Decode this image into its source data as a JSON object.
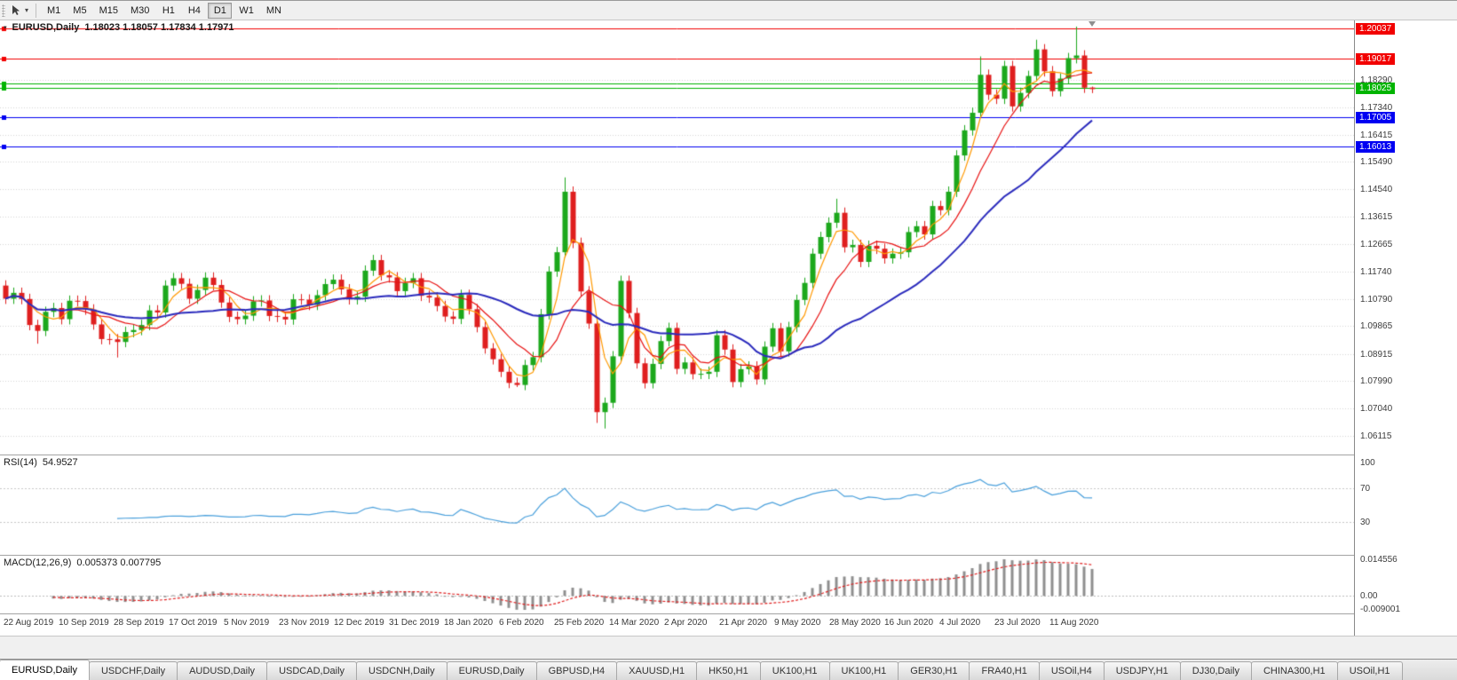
{
  "toolbar": {
    "timeframes": [
      "M1",
      "M5",
      "M15",
      "M30",
      "H1",
      "H4",
      "D1",
      "W1",
      "MN"
    ],
    "active_timeframe": "D1"
  },
  "chart_header": {
    "symbol_period": "EURUSD,Daily",
    "ohlc": "1.18023 1.18057 1.17834 1.17971"
  },
  "chart_data": {
    "type": "candlestick",
    "symbol": "EURUSD",
    "period": "Daily",
    "ylim": [
      1.0547,
      1.2032
    ],
    "up_color": "#1ca81c",
    "down_color": "#df1f1f",
    "grid_color": "#d6d6d6",
    "price_axis_labels": [
      "1.18290",
      "1.17340",
      "1.16415",
      "1.15490",
      "1.14540",
      "1.13615",
      "1.12665",
      "1.11740",
      "1.10790",
      "1.09865",
      "1.08915",
      "1.07990",
      "1.07040",
      "1.06115"
    ],
    "date_axis_labels": [
      "22 Aug 2019",
      "10 Sep 2019",
      "28 Sep 2019",
      "17 Oct 2019",
      "5 Nov 2019",
      "23 Nov 2019",
      "12 Dec 2019",
      "31 Dec 2019",
      "18 Jan 2020",
      "6 Feb 2020",
      "25 Feb 2020",
      "14 Mar 2020",
      "2 Apr 2020",
      "21 Apr 2020",
      "9 May 2020",
      "28 May 2020",
      "16 Jun 2020",
      "4 Jul 2020",
      "23 Jul 2020",
      "11 Aug 2020"
    ],
    "hlines": [
      {
        "price": 1.20037,
        "color": "#f20000",
        "label": "1.20037"
      },
      {
        "price": 1.19017,
        "color": "#f20000",
        "label": "1.19017"
      },
      {
        "price": 1.1815,
        "color": "#00b400",
        "label": null
      },
      {
        "price": 1.18025,
        "color": "#00b400",
        "label": "1.18025"
      },
      {
        "price": 1.17005,
        "color": "#0000f2",
        "label": "1.17005"
      },
      {
        "price": 1.16013,
        "color": "#0000f2",
        "label": "1.16013"
      }
    ],
    "moving_averages": [
      {
        "period": 4,
        "color": "#ff9900"
      },
      {
        "period": 9,
        "color": "#e81212"
      },
      {
        "period": 24,
        "color": "#2b2bbd"
      }
    ],
    "candles": [
      [
        1.1125,
        1.1143,
        1.1062,
        1.108
      ],
      [
        1.108,
        1.1118,
        1.1062,
        1.11
      ],
      [
        1.11,
        1.1118,
        1.1061,
        1.1079
      ],
      [
        1.1079,
        1.1097,
        1.0972,
        1.099
      ],
      [
        1.099,
        1.1008,
        1.0926,
        1.097
      ],
      [
        1.097,
        1.1053,
        1.0952,
        1.1035
      ],
      [
        1.1035,
        1.1066,
        1.1017,
        1.1048
      ],
      [
        1.1048,
        1.1066,
        1.0992,
        1.101
      ],
      [
        1.101,
        1.1091,
        1.0992,
        1.1073
      ],
      [
        1.1073,
        1.1091,
        1.1054,
        1.1072
      ],
      [
        1.1072,
        1.109,
        1.1025,
        1.1043
      ],
      [
        1.1043,
        1.1061,
        1.0974,
        1.0992
      ],
      [
        1.0992,
        1.101,
        1.0924,
        1.0942
      ],
      [
        1.0942,
        1.096,
        1.0923,
        1.0941
      ],
      [
        1.0941,
        1.0959,
        1.0879,
        1.0932
      ],
      [
        1.0932,
        1.0984,
        1.0914,
        1.0966
      ],
      [
        1.0966,
        1.0991,
        1.0948,
        1.0973
      ],
      [
        1.0973,
        1.1008,
        1.0955,
        1.099
      ],
      [
        1.099,
        1.1058,
        1.0972,
        1.104
      ],
      [
        1.104,
        1.1058,
        1.1015,
        1.1033
      ],
      [
        1.1033,
        1.1143,
        1.1015,
        1.1125
      ],
      [
        1.1125,
        1.1168,
        1.1107,
        1.115
      ],
      [
        1.115,
        1.1168,
        1.1113,
        1.1131
      ],
      [
        1.1131,
        1.1149,
        1.1062,
        1.108
      ],
      [
        1.108,
        1.1128,
        1.1062,
        1.111
      ],
      [
        1.111,
        1.117,
        1.1092,
        1.1152
      ],
      [
        1.1152,
        1.117,
        1.1109,
        1.1127
      ],
      [
        1.1127,
        1.1145,
        1.1049,
        1.1067
      ],
      [
        1.1067,
        1.1085,
        1.1,
        1.1018
      ],
      [
        1.1018,
        1.1036,
        1.0992,
        1.101
      ],
      [
        1.101,
        1.104,
        1.0992,
        1.1022
      ],
      [
        1.1022,
        1.1089,
        1.1004,
        1.1071
      ],
      [
        1.1071,
        1.1092,
        1.1053,
        1.1074
      ],
      [
        1.1074,
        1.1092,
        1.1003,
        1.1021
      ],
      [
        1.1021,
        1.1039,
        1.1,
        1.1018
      ],
      [
        1.1018,
        1.1036,
        1.0991,
        1.1009
      ],
      [
        1.1009,
        1.1096,
        1.0991,
        1.1078
      ],
      [
        1.1078,
        1.1096,
        1.1059,
        1.1077
      ],
      [
        1.1077,
        1.1095,
        1.1041,
        1.1059
      ],
      [
        1.1059,
        1.111,
        1.1041,
        1.1092
      ],
      [
        1.1092,
        1.1148,
        1.1074,
        1.113
      ],
      [
        1.113,
        1.1163,
        1.1112,
        1.1145
      ],
      [
        1.1145,
        1.1163,
        1.1094,
        1.1112
      ],
      [
        1.1112,
        1.113,
        1.106,
        1.1078
      ],
      [
        1.1078,
        1.1105,
        1.106,
        1.1087
      ],
      [
        1.1087,
        1.1194,
        1.1069,
        1.1176
      ],
      [
        1.1176,
        1.123,
        1.1158,
        1.1212
      ],
      [
        1.1212,
        1.123,
        1.1142,
        1.116
      ],
      [
        1.116,
        1.1178,
        1.1135,
        1.1153
      ],
      [
        1.1153,
        1.1171,
        1.1088,
        1.1106
      ],
      [
        1.1106,
        1.1152,
        1.1088,
        1.1134
      ],
      [
        1.1134,
        1.1168,
        1.1116,
        1.115
      ],
      [
        1.115,
        1.1168,
        1.1072,
        1.109
      ],
      [
        1.109,
        1.1108,
        1.1066,
        1.1084
      ],
      [
        1.1084,
        1.1102,
        1.1037,
        1.1055
      ],
      [
        1.1055,
        1.1073,
        1.1001,
        1.1019
      ],
      [
        1.1019,
        1.1037,
        1.0993,
        1.1011
      ],
      [
        1.1011,
        1.1111,
        1.0993,
        1.1093
      ],
      [
        1.1093,
        1.1111,
        1.1026,
        1.1044
      ],
      [
        1.1044,
        1.1062,
        1.0965,
        1.0983
      ],
      [
        1.0983,
        1.1001,
        1.0892,
        1.091
      ],
      [
        1.091,
        1.0928,
        1.0855,
        1.0873
      ],
      [
        1.0873,
        1.0891,
        1.0812,
        1.083
      ],
      [
        1.083,
        1.0848,
        1.0774,
        1.0792
      ],
      [
        1.0792,
        1.081,
        1.0778,
        1.0785
      ],
      [
        1.0785,
        1.0871,
        1.0767,
        1.0853
      ],
      [
        1.0853,
        1.0898,
        1.0835,
        1.088
      ],
      [
        1.088,
        1.1045,
        1.0862,
        1.1027
      ],
      [
        1.1027,
        1.1191,
        1.1009,
        1.1173
      ],
      [
        1.1173,
        1.1257,
        1.1155,
        1.1239
      ],
      [
        1.1239,
        1.1495,
        1.1221,
        1.1446
      ],
      [
        1.1446,
        1.1464,
        1.1253,
        1.1271
      ],
      [
        1.1271,
        1.1289,
        1.1087,
        1.1105
      ],
      [
        1.1105,
        1.1123,
        1.0977,
        1.0995
      ],
      [
        1.0995,
        1.1013,
        1.0655,
        1.0692
      ],
      [
        1.0692,
        1.0742,
        1.0636,
        1.0724
      ],
      [
        1.0724,
        1.0901,
        1.0706,
        1.0883
      ],
      [
        1.0883,
        1.1159,
        1.0865,
        1.1141
      ],
      [
        1.1141,
        1.1159,
        1.1013,
        1.1031
      ],
      [
        1.1031,
        1.1049,
        1.0841,
        1.0859
      ],
      [
        1.0859,
        1.0877,
        1.0773,
        1.0791
      ],
      [
        1.0791,
        1.0875,
        1.0773,
        1.0857
      ],
      [
        1.0857,
        1.0953,
        1.0839,
        1.0935
      ],
      [
        1.0935,
        1.0998,
        1.0917,
        1.098
      ],
      [
        1.098,
        1.0998,
        1.0822,
        1.084
      ],
      [
        1.084,
        1.088,
        1.0822,
        1.0862
      ],
      [
        1.0862,
        1.088,
        1.0804,
        1.0822
      ],
      [
        1.0822,
        1.0841,
        1.0805,
        1.0823
      ],
      [
        1.0823,
        1.0848,
        1.0805,
        1.083
      ],
      [
        1.083,
        1.0973,
        1.0812,
        1.0955
      ],
      [
        1.0955,
        1.0973,
        1.0888,
        1.0906
      ],
      [
        1.0906,
        1.0924,
        1.0777,
        1.0795
      ],
      [
        1.0795,
        1.0857,
        1.0777,
        1.0839
      ],
      [
        1.0839,
        1.0866,
        1.0821,
        1.0848
      ],
      [
        1.0848,
        1.0866,
        1.0786,
        1.0804
      ],
      [
        1.0804,
        1.0934,
        1.0786,
        1.0916
      ],
      [
        1.0916,
        1.0997,
        1.0898,
        1.0979
      ],
      [
        1.0979,
        1.0997,
        1.0882,
        1.09
      ],
      [
        1.09,
        1.1001,
        1.0882,
        1.0983
      ],
      [
        1.0983,
        1.1094,
        1.0965,
        1.1076
      ],
      [
        1.1076,
        1.1152,
        1.1058,
        1.1134
      ],
      [
        1.1134,
        1.1252,
        1.1116,
        1.1234
      ],
      [
        1.1234,
        1.1309,
        1.1216,
        1.1291
      ],
      [
        1.1291,
        1.1358,
        1.1273,
        1.134
      ],
      [
        1.134,
        1.1422,
        1.1322,
        1.1374
      ],
      [
        1.1374,
        1.1392,
        1.1238,
        1.1256
      ],
      [
        1.1256,
        1.1282,
        1.1238,
        1.1264
      ],
      [
        1.1264,
        1.1282,
        1.1188,
        1.1206
      ],
      [
        1.1206,
        1.1279,
        1.1188,
        1.1261
      ],
      [
        1.1261,
        1.1279,
        1.1233,
        1.1251
      ],
      [
        1.1251,
        1.1269,
        1.12,
        1.1218
      ],
      [
        1.1218,
        1.1252,
        1.12,
        1.1234
      ],
      [
        1.1234,
        1.1257,
        1.1216,
        1.1239
      ],
      [
        1.1239,
        1.1326,
        1.1221,
        1.1308
      ],
      [
        1.1308,
        1.1346,
        1.129,
        1.1328
      ],
      [
        1.1328,
        1.1346,
        1.1282,
        1.13
      ],
      [
        1.13,
        1.1415,
        1.1282,
        1.1397
      ],
      [
        1.1397,
        1.1415,
        1.1365,
        1.1383
      ],
      [
        1.1383,
        1.1464,
        1.1365,
        1.1446
      ],
      [
        1.1446,
        1.1588,
        1.1428,
        1.157
      ],
      [
        1.157,
        1.1674,
        1.1552,
        1.1656
      ],
      [
        1.1656,
        1.1734,
        1.1638,
        1.1716
      ],
      [
        1.1716,
        1.1909,
        1.1698,
        1.1846
      ],
      [
        1.1846,
        1.1864,
        1.176,
        1.1778
      ],
      [
        1.1778,
        1.1796,
        1.1746,
        1.1764
      ],
      [
        1.1764,
        1.1894,
        1.1746,
        1.1876
      ],
      [
        1.1876,
        1.1894,
        1.172,
        1.1738
      ],
      [
        1.1738,
        1.1802,
        1.172,
        1.1784
      ],
      [
        1.1784,
        1.186,
        1.1766,
        1.1842
      ],
      [
        1.1842,
        1.1966,
        1.1824,
        1.1933
      ],
      [
        1.1933,
        1.1951,
        1.184,
        1.1858
      ],
      [
        1.1858,
        1.1876,
        1.1772,
        1.179
      ],
      [
        1.179,
        1.1851,
        1.1772,
        1.1833
      ],
      [
        1.1833,
        1.1921,
        1.1815,
        1.1903
      ],
      [
        1.1903,
        1.2011,
        1.1885,
        1.1912
      ],
      [
        1.1912,
        1.193,
        1.1784,
        1.1802
      ],
      [
        1.18023,
        1.18057,
        1.17834,
        1.17971
      ]
    ]
  },
  "rsi": {
    "title": "RSI(14)",
    "value": "54.9527",
    "period": 14,
    "color": "#4aa0dc",
    "levels": [
      "100",
      "70",
      "30"
    ]
  },
  "macd": {
    "title": "MACD(12,26,9)",
    "values": "0.005373 0.007795",
    "fast": 12,
    "slow": 26,
    "signal_period": 9,
    "axis_labels": [
      "0.014556",
      "0.00",
      "-0.009001"
    ],
    "histogram_color": "#8f8f8f",
    "signal_color": "#e02020"
  },
  "tabs": {
    "active_index": 0,
    "items": [
      "EURUSD,Daily",
      "USDCHF,Daily",
      "AUDUSD,Daily",
      "USDCAD,Daily",
      "USDCNH,Daily",
      "EURUSD,Daily",
      "GBPUSD,H4",
      "XAUUSD,H1",
      "HK50,H1",
      "UK100,H1",
      "UK100,H1",
      "GER30,H1",
      "FRA40,H1",
      "USOil,H4",
      "USDJPY,H1",
      "DJ30,Daily",
      "CHINA300,H1",
      "USOil,H1"
    ]
  }
}
